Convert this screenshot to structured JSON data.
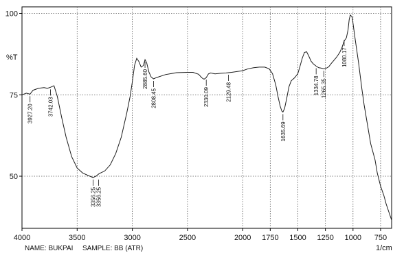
{
  "chart_data": {
    "type": "line",
    "title": "",
    "ylabel": "%T",
    "xlabel": "1/cm",
    "xlim": [
      4000,
      650
    ],
    "ylim": [
      34,
      102
    ],
    "x_ticks": [
      4000,
      3500,
      3000,
      2500,
      2000,
      1750,
      1500,
      1250,
      1000,
      750
    ],
    "x_tick_labels": [
      "4000",
      "3500",
      "3000",
      "2500",
      "2000",
      "1750",
      "1500",
      "1250",
      "1000",
      "750"
    ],
    "y_ticks": [
      100,
      75,
      50
    ],
    "y_tick_labels": [
      "100",
      "75",
      "50"
    ],
    "grid": true,
    "series": [
      {
        "x": [
          4000,
          3960,
          3927,
          3900,
          3850,
          3800,
          3770,
          3742,
          3710,
          3680,
          3640,
          3600,
          3550,
          3500,
          3450,
          3400,
          3370,
          3356,
          3330,
          3300,
          3250,
          3200,
          3150,
          3100,
          3050,
          3020,
          3000,
          2980,
          2960,
          2940,
          2920,
          2900,
          2885,
          2870,
          2850,
          2830,
          2808,
          2780,
          2700,
          2600,
          2500,
          2450,
          2400,
          2370,
          2350,
          2330,
          2310,
          2290,
          2250,
          2200,
          2150,
          2129,
          2100,
          2000,
          1950,
          1900,
          1850,
          1800,
          1760,
          1730,
          1700,
          1680,
          1660,
          1645,
          1635,
          1620,
          1600,
          1580,
          1560,
          1530,
          1500,
          1480,
          1460,
          1440,
          1420,
          1400,
          1380,
          1360,
          1334,
          1310,
          1290,
          1265,
          1240,
          1220,
          1200,
          1180,
          1150,
          1120,
          1100,
          1080,
          1060,
          1045,
          1035,
          1025,
          1010,
          1000,
          980,
          950,
          920,
          900,
          870,
          840,
          800,
          780,
          750,
          720,
          700,
          680,
          660,
          650
        ],
        "y": [
          75,
          75.5,
          75.2,
          76.4,
          77,
          77.2,
          77,
          77.3,
          77.8,
          74.5,
          68,
          62,
          56,
          52.5,
          51,
          50.2,
          49.8,
          49.6,
          50,
          50.8,
          51.6,
          53.5,
          57,
          62,
          69.5,
          74.5,
          79,
          84,
          86.2,
          85.2,
          83.5,
          84,
          85.8,
          84.8,
          82,
          80.5,
          79.9,
          80.3,
          81.2,
          81.8,
          81.9,
          81.9,
          81.3,
          80.2,
          79.8,
          80.3,
          81.4,
          81.7,
          81.4,
          81.6,
          81.7,
          81.8,
          81.9,
          82.4,
          83,
          83.3,
          83.5,
          83.5,
          83,
          81.5,
          78,
          74.5,
          71.5,
          70,
          69.7,
          70.8,
          74,
          77.5,
          79.3,
          80.2,
          81.5,
          83.8,
          86.2,
          88,
          88.2,
          86.8,
          85.3,
          84.5,
          83.8,
          83.3,
          83.2,
          83,
          83.2,
          83.6,
          84.5,
          85.3,
          86.5,
          88,
          89.5,
          91.5,
          92.5,
          95,
          98,
          99.5,
          99,
          97,
          92,
          85,
          77,
          72,
          66,
          60,
          55,
          51,
          47,
          44,
          41.5,
          39.5,
          37.5,
          36.5
        ]
      }
    ],
    "annotations": [
      {
        "label": "3927.20",
        "x": 3927,
        "y": 75.2
      },
      {
        "label": "3742.03",
        "x": 3742,
        "y": 77.3
      },
      {
        "label": "3356.25",
        "x": 3356,
        "y": 49.6
      },
      {
        "label": "3356.25",
        "x": 3356,
        "y": 49.6
      },
      {
        "label": "2885.60",
        "x": 2885,
        "y": 85.8
      },
      {
        "label": "2808.45",
        "x": 2808,
        "y": 79.9
      },
      {
        "label": "2330.09",
        "x": 2330,
        "y": 80.3
      },
      {
        "label": "2129.48",
        "x": 2129,
        "y": 81.8
      },
      {
        "label": "1635.69",
        "x": 1635,
        "y": 69.7
      },
      {
        "label": "1334.78",
        "x": 1334,
        "y": 83.8
      },
      {
        "label": "1265.35",
        "x": 1265,
        "y": 83
      },
      {
        "label": "1080.17",
        "x": 1080,
        "y": 92.5
      }
    ]
  },
  "footer": {
    "name_label": "NAME: BUKPAI",
    "sample_label": "SAMPLE: BB (ATR)",
    "unit_label": "1/cm"
  }
}
